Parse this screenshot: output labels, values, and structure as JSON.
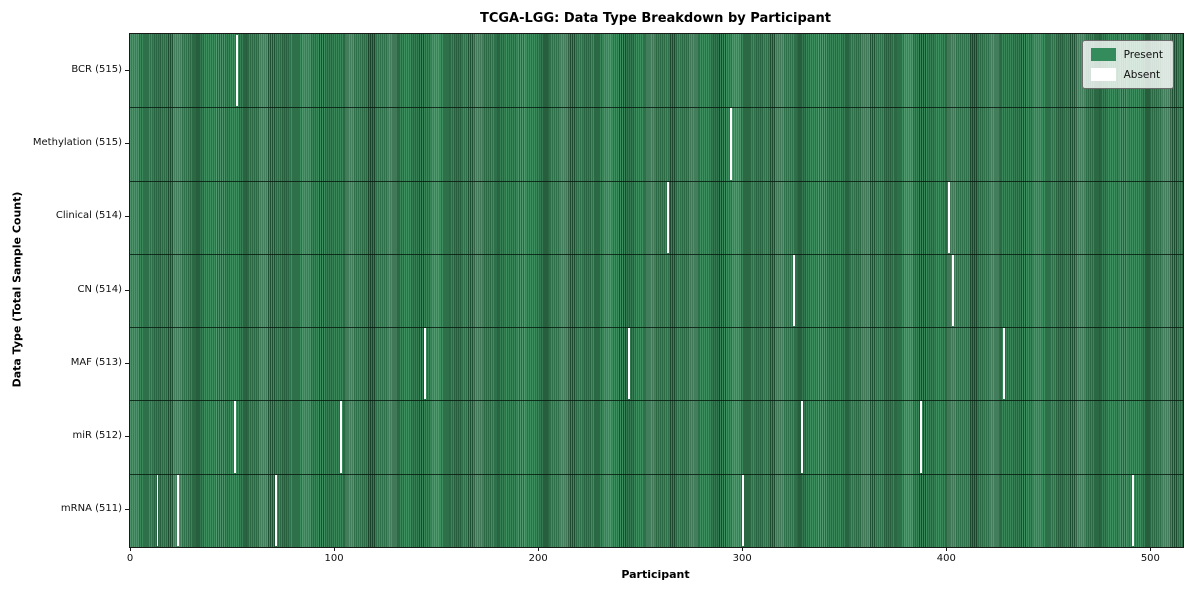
{
  "chart_data": {
    "type": "heatmap",
    "title": "TCGA-LGG: Data Type Breakdown by Participant",
    "xlabel": "Participant",
    "ylabel": "Data Type (Total Sample Count)",
    "x_ticks": [
      0,
      100,
      200,
      300,
      400,
      500
    ],
    "xlim": [
      -0.5,
      515.5
    ],
    "n_participants": 516,
    "grid": false,
    "rows": [
      {
        "data_type": "BCR",
        "label": "BCR (515)",
        "present_count": 515,
        "absent_indices": [
          52
        ]
      },
      {
        "data_type": "Methylation",
        "label": "Methylation (515)",
        "present_count": 515,
        "absent_indices": [
          294
        ]
      },
      {
        "data_type": "Clinical",
        "label": "Clinical (514)",
        "present_count": 514,
        "absent_indices": [
          263,
          401
        ]
      },
      {
        "data_type": "CN",
        "label": "CN (514)",
        "present_count": 514,
        "absent_indices": [
          325,
          403
        ]
      },
      {
        "data_type": "MAF",
        "label": "MAF (513)",
        "present_count": 513,
        "absent_indices": [
          144,
          244,
          428
        ]
      },
      {
        "data_type": "miR",
        "label": "miR (512)",
        "present_count": 512,
        "absent_indices": [
          51,
          103,
          329,
          387
        ]
      },
      {
        "data_type": "mRNA",
        "label": "mRNA (511)",
        "present_count": 511,
        "absent_indices": [
          13,
          23,
          71,
          300,
          491
        ]
      }
    ],
    "legend": {
      "position": "upper right",
      "entries": [
        {
          "label": "Present",
          "color": "#348b5b"
        },
        {
          "label": "Absent",
          "color": "#ffffff"
        }
      ]
    },
    "colors": {
      "present": "#348b5b",
      "absent": "#ffffff",
      "bar_edge": "#1e5033"
    }
  }
}
